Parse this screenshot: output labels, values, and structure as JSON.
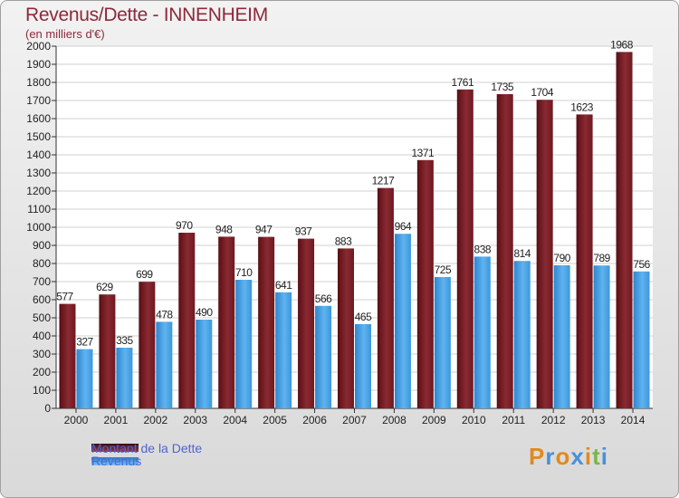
{
  "title": "Revenus/Dette - INNENHEIM",
  "subtitle": "(en milliers d'€)",
  "logo": {
    "text": "Proxiti",
    "letters": [
      "P",
      "r",
      "o",
      "x",
      "i",
      "t",
      "i"
    ],
    "colors": [
      "#e08a1e",
      "#4a90d9",
      "#e08a1e",
      "#4a90d9",
      "#e08a1e",
      "#7ab648",
      "#4a90d9"
    ]
  },
  "colors": {
    "dette": "#7a1a22",
    "revenus": "#4aa3e8",
    "title": "#8c2a3a",
    "legend_text": "#4f63d6"
  },
  "chart_data": {
    "type": "bar",
    "categories": [
      "2000",
      "2001",
      "2002",
      "2003",
      "2004",
      "2005",
      "2006",
      "2007",
      "2008",
      "2009",
      "2010",
      "2011",
      "2012",
      "2013",
      "2014"
    ],
    "series": [
      {
        "name": "Montant de la Dette",
        "values": [
          577,
          629,
          699,
          970,
          948,
          947,
          937,
          883,
          1217,
          1371,
          1761,
          1735,
          1704,
          1623,
          1968
        ]
      },
      {
        "name": "Revenus",
        "values": [
          327,
          335,
          478,
          490,
          710,
          641,
          566,
          465,
          964,
          725,
          838,
          814,
          790,
          789,
          756
        ]
      }
    ],
    "ylim": [
      0,
      2000
    ],
    "yticks": [
      0,
      100,
      200,
      300,
      400,
      500,
      600,
      700,
      800,
      900,
      1000,
      1100,
      1200,
      1300,
      1400,
      1500,
      1600,
      1700,
      1800,
      1900,
      2000
    ],
    "grid": true,
    "legend_position": "bottom-left"
  }
}
